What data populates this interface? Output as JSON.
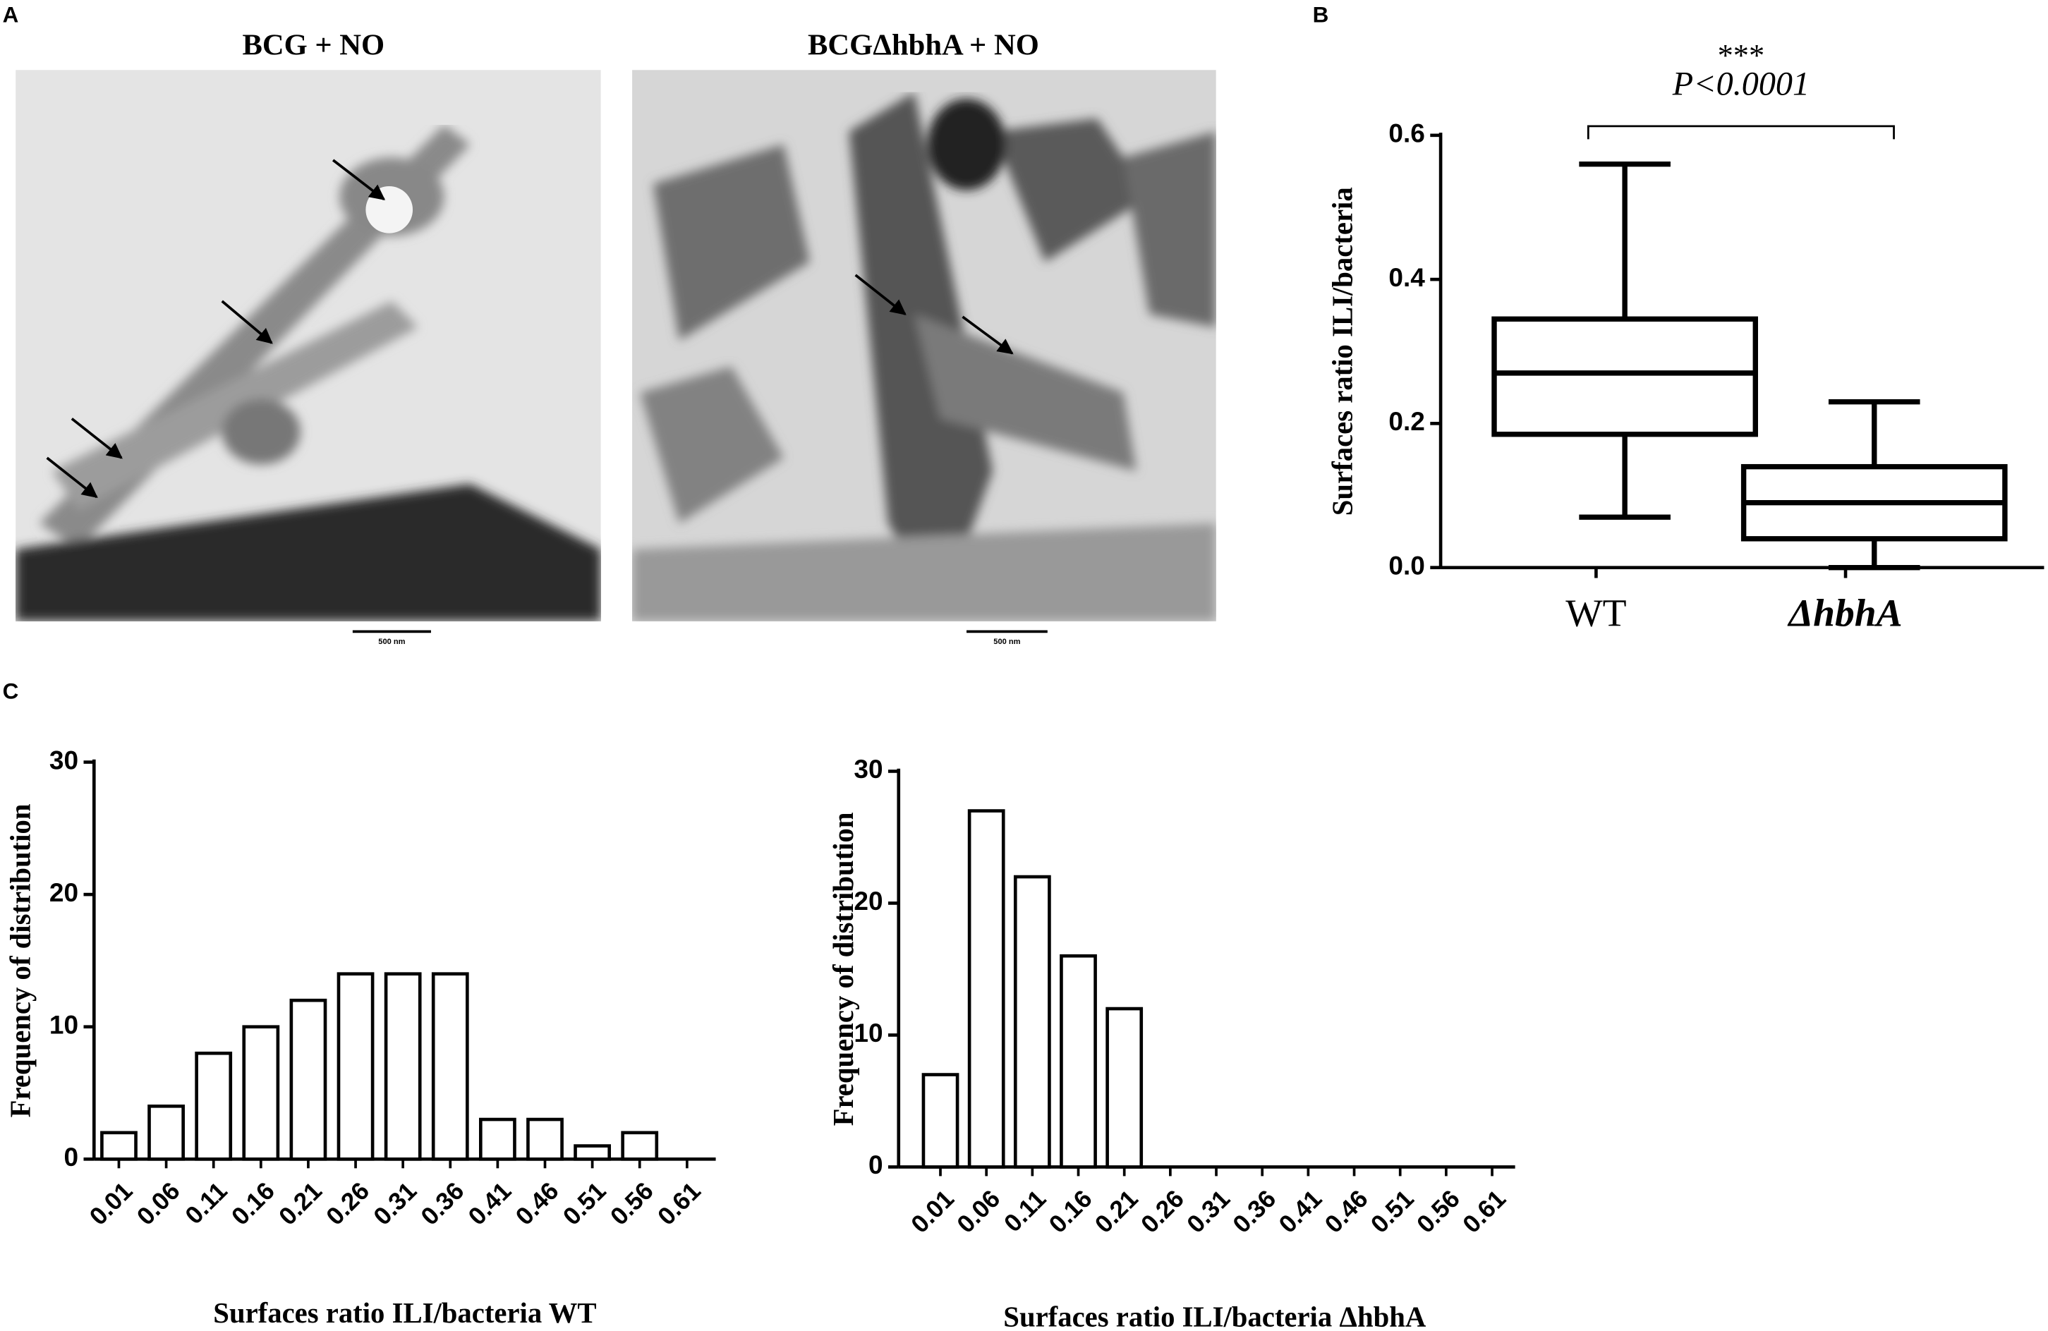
{
  "panel_labels": [
    "A",
    "B",
    "C"
  ],
  "micrographs": [
    {
      "title": "BCG + NO",
      "scale_bar": "500 nm"
    },
    {
      "title": "BCGΔhbhA + NO",
      "scale_bar": "500 nm"
    }
  ],
  "chart_data": [
    {
      "type": "box",
      "ylabel": "Surfaces ratio ILI/bacteria",
      "categories": [
        "WT",
        "ΔhbhA"
      ],
      "boxes": [
        {
          "min": 0.07,
          "q1": 0.185,
          "median": 0.27,
          "q3": 0.345,
          "max": 0.56
        },
        {
          "min": 0.0,
          "q1": 0.04,
          "median": 0.09,
          "q3": 0.14,
          "max": 0.23
        }
      ],
      "color": "#000000",
      "ylim": [
        0,
        0.6
      ],
      "yticks": [
        {
          "value": 0,
          "label": "0.0"
        },
        0.2,
        0.4,
        0.6
      ],
      "annotation": {
        "stars": "***",
        "p_value": "P<0.0001"
      }
    },
    {
      "type": "bar",
      "xlabel": "Surfaces ratio ILI/bacteria WT",
      "ylabel": "Frequency of distribution",
      "categories": [
        "0.01",
        "0.06",
        "0.11",
        "0.16",
        "0.21",
        "0.26",
        "0.31",
        "0.36",
        "0.41",
        "0.46",
        "0.51",
        "0.56",
        "0.61"
      ],
      "values": [
        2,
        4,
        8,
        10,
        12,
        14,
        14,
        14,
        3,
        3,
        1,
        2,
        0
      ],
      "color": "#ffffff",
      "ylim": [
        0,
        30
      ],
      "yticks": [
        0,
        10,
        20,
        30
      ]
    },
    {
      "type": "bar",
      "xlabel": "Surfaces ratio ILI/bacteria ΔhbhA",
      "ylabel": "Frequency of distribution",
      "categories": [
        "0.01",
        "0.06",
        "0.11",
        "0.16",
        "0.21",
        "0.26",
        "0.31",
        "0.36",
        "0.41",
        "0.46",
        "0.51",
        "0.56",
        "0.61"
      ],
      "values": [
        7,
        27,
        22,
        16,
        12,
        0,
        0,
        0,
        0,
        0,
        0,
        0,
        0
      ],
      "color": "#ffffff",
      "ylim": [
        0,
        30
      ],
      "yticks": [
        0,
        10,
        20,
        30
      ]
    }
  ]
}
